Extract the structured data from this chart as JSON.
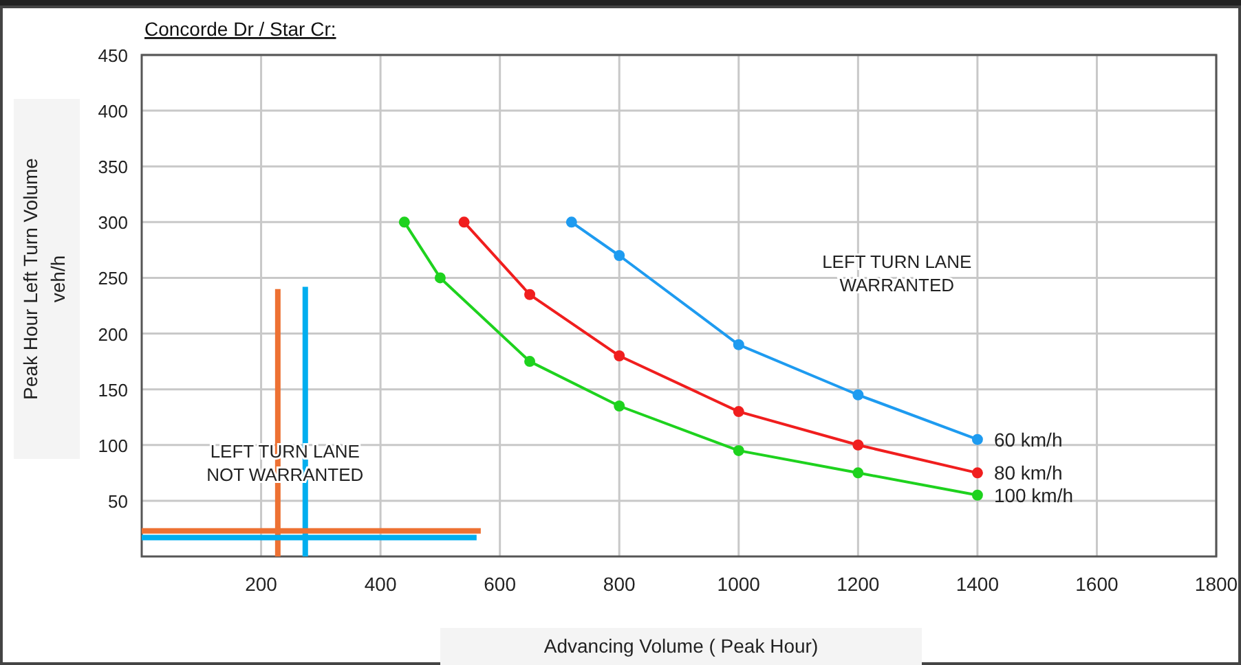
{
  "chart_data": {
    "type": "line",
    "title": "Concorde Dr / Star Cr:",
    "xlabel": "Advancing Volume ( Peak Hour)",
    "ylabel": "Peak Hour Left Turn Volume\nveh/h",
    "xlim": [
      0,
      1800
    ],
    "xticks": [
      200,
      400,
      600,
      800,
      1000,
      1200,
      1400,
      1600,
      1800
    ],
    "ylim": [
      0,
      450
    ],
    "yticks": [
      50,
      100,
      150,
      200,
      250,
      300,
      350,
      400,
      450
    ],
    "grid": true,
    "legend": false,
    "marker": "circle",
    "line_style": "solid",
    "annotations": [
      "LEFT TURN LANE\nWARRANTED",
      "LEFT TURN LANE\nNOT WARRANTED"
    ],
    "series": [
      {
        "name": "60  km/h",
        "color": "#1e9bf0",
        "x": [
          720,
          800,
          1000,
          1200,
          1400
        ],
        "values": [
          300,
          270,
          190,
          145,
          105
        ]
      },
      {
        "name": "80  km/h",
        "color": "#f01e1e",
        "x": [
          540,
          650,
          800,
          1000,
          1200,
          1400
        ],
        "values": [
          300,
          235,
          180,
          130,
          100,
          75
        ]
      },
      {
        "name": "100  km/h",
        "color": "#1ed21e",
        "x": [
          440,
          500,
          650,
          800,
          1000,
          1200,
          1400
        ],
        "values": [
          300,
          250,
          175,
          135,
          95,
          75,
          55
        ]
      },
      {
        "color": "#ed7133",
        "marker": "none",
        "x": [
          228,
          228
        ],
        "values": [
          0,
          240
        ]
      },
      {
        "color": "#00aeef",
        "marker": "none",
        "x": [
          274,
          274
        ],
        "values": [
          0,
          242
        ]
      },
      {
        "color": "#ed7133",
        "marker": "none",
        "x": [
          0,
          568
        ],
        "values": [
          23,
          23
        ]
      },
      {
        "color": "#00aeef",
        "marker": "none",
        "x": [
          0,
          561
        ],
        "values": [
          17,
          17
        ]
      }
    ]
  }
}
